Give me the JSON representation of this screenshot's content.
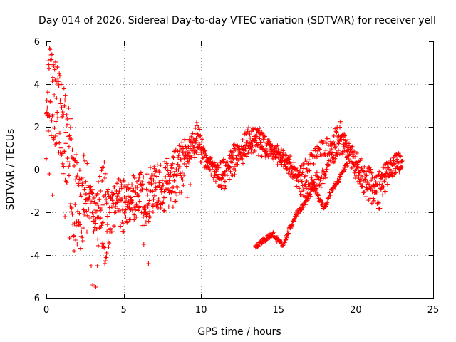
{
  "chart_data": {
    "type": "scatter",
    "title": "Day 014 of 2026, Sidereal Day-to-day VTEC variation (SDTVAR) for receiver yell",
    "xlabel": "GPS time / hours",
    "ylabel": "SDTVAR / TECUs",
    "xlim": [
      0,
      25
    ],
    "ylim": [
      -6,
      6
    ],
    "xticks": [
      "0",
      "5",
      "10",
      "15",
      "20",
      "25"
    ],
    "yticks": [
      "-6",
      "-4",
      "-2",
      "0",
      "2",
      "4",
      "6"
    ],
    "grid": true,
    "marker": "plus",
    "series": [
      {
        "name": "SDTVAR",
        "color": "#ff0000",
        "trace_a": {
          "x": [
            0.0,
            0.1,
            0.2,
            0.3,
            0.4,
            0.6,
            0.8,
            1.0,
            1.2,
            1.4,
            1.6,
            1.8,
            2.0,
            2.2,
            2.4,
            2.6,
            2.8,
            3.0,
            3.2,
            3.4,
            3.6,
            3.8,
            4.0,
            4.2,
            4.5,
            4.8,
            5.0,
            5.3,
            5.6,
            6.0,
            6.4,
            6.8,
            7.2,
            7.6,
            8.0,
            8.4,
            8.8,
            9.2,
            9.6,
            9.8,
            10.0,
            10.3,
            10.6,
            11.0,
            11.4,
            11.8,
            12.2,
            12.6,
            13.0,
            13.4,
            13.8,
            14.2,
            14.6,
            15.0,
            15.4,
            15.8,
            16.2,
            16.6,
            17.0,
            17.4,
            17.8,
            18.2,
            18.6,
            19.0,
            19.4,
            19.8,
            20.2,
            20.6,
            21.0,
            21.4,
            21.8,
            22.2,
            22.6,
            23.0
          ],
          "y": [
            1.5,
            4.5,
            5.2,
            5.0,
            4.6,
            4.2,
            3.8,
            3.2,
            2.8,
            2.2,
            1.5,
            0.5,
            -0.5,
            -1.0,
            0.0,
            -0.5,
            -1.5,
            -2.0,
            -1.8,
            -1.2,
            -0.8,
            -0.5,
            -1.5,
            -2.2,
            -1.5,
            -1.0,
            -1.5,
            -1.8,
            -1.5,
            -1.0,
            -1.2,
            -0.8,
            -1.0,
            -0.5,
            -0.3,
            0.0,
            0.5,
            1.0,
            1.5,
            2.0,
            1.2,
            0.5,
            0.2,
            -0.2,
            0.0,
            0.5,
            0.8,
            1.2,
            1.5,
            1.6,
            1.5,
            1.2,
            0.9,
            0.7,
            0.5,
            0.3,
            -0.5,
            -1.0,
            -0.9,
            -0.6,
            -0.4,
            0.2,
            0.8,
            1.2,
            1.0,
            0.6,
            0.2,
            -0.2,
            -0.3,
            -0.5,
            -0.2,
            0.0,
            0.3,
            0.5
          ]
        },
        "trace_b": {
          "x": [
            0.0,
            0.3,
            0.6,
            1.0,
            1.4,
            1.8,
            2.2,
            2.6,
            3.0,
            3.4,
            3.8,
            4.2,
            4.6,
            5.0,
            5.5,
            6.0,
            6.5,
            7.0,
            7.5,
            8.0,
            8.5,
            9.0,
            9.5,
            10.0,
            10.5,
            11.0,
            11.5,
            12.0,
            12.5,
            13.0,
            13.5,
            14.0,
            14.5,
            15.0,
            15.5,
            16.0,
            16.5,
            17.0,
            17.5,
            18.0,
            18.5,
            19.0,
            19.5,
            20.0,
            20.5,
            21.0,
            21.5,
            22.0,
            22.5,
            23.0
          ],
          "y": [
            3.0,
            2.5,
            2.0,
            1.0,
            0.0,
            -2.5,
            -3.0,
            -2.0,
            -1.0,
            -2.8,
            -3.5,
            -2.0,
            -1.5,
            -2.0,
            -1.0,
            -1.5,
            -2.0,
            -0.5,
            -1.0,
            -1.5,
            -0.5,
            0.5,
            1.0,
            0.8,
            0.2,
            -0.3,
            -0.5,
            0.0,
            0.5,
            1.0,
            1.2,
            1.0,
            0.8,
            0.6,
            0.3,
            0.0,
            -0.2,
            0.3,
            0.8,
            1.0,
            1.3,
            1.8,
            1.0,
            0.0,
            -0.8,
            -1.2,
            -1.5,
            -0.5,
            0.5,
            0.2
          ]
        },
        "trace_c": {
          "x": [
            13.5,
            13.8,
            14.1,
            14.4,
            14.7,
            15.0,
            15.3,
            15.6,
            15.9,
            16.2,
            16.5,
            16.8,
            17.1,
            17.4,
            17.7,
            18.0,
            18.3,
            18.6,
            18.9,
            19.2,
            19.5
          ],
          "y": [
            -3.6,
            -3.4,
            -3.3,
            -3.1,
            -3.0,
            -3.4,
            -3.5,
            -3.0,
            -2.5,
            -2.0,
            -1.8,
            -1.5,
            -1.0,
            -0.8,
            -1.5,
            -1.8,
            -1.2,
            -0.8,
            -0.5,
            0.0,
            0.3
          ]
        },
        "outliers": {
          "x": [
            0.2,
            0.4,
            1.2,
            1.5,
            1.8,
            2.1,
            2.9,
            3.0,
            3.2,
            3.3,
            3.6,
            3.9,
            4.1,
            6.3,
            6.6,
            6.9,
            7.4,
            8.2,
            9.1,
            9.3
          ],
          "y": [
            -0.2,
            -1.2,
            -2.2,
            -3.2,
            -3.8,
            -2.6,
            -4.5,
            -5.4,
            -5.5,
            -4.5,
            -3.6,
            -3.9,
            -2.9,
            -3.5,
            -4.4,
            -2.0,
            -1.8,
            -0.8,
            -1.3,
            -0.7
          ]
        }
      }
    ]
  }
}
